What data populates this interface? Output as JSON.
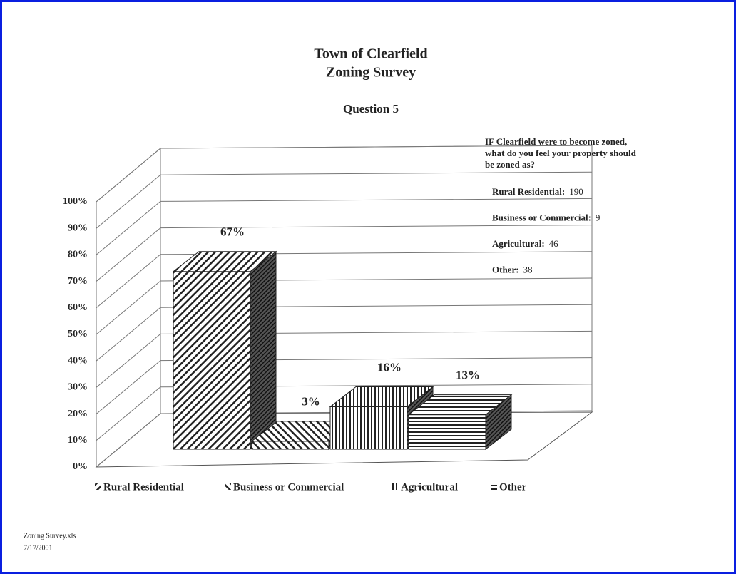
{
  "chart_data": {
    "type": "bar3d",
    "title": [
      "Town of Clearfield",
      "Zoning Survey"
    ],
    "subtitle": "Question 5",
    "categories": [
      "Rural Residential",
      "Business or Commercial",
      "Agricultural",
      "Other"
    ],
    "values": [
      67,
      3,
      16,
      13
    ],
    "value_labels": [
      "67%",
      "3%",
      "16%",
      "13%"
    ],
    "patterns": [
      "diag-back",
      "diag-fwd",
      "vertical",
      "horizontal"
    ],
    "ylim": [
      0,
      100
    ],
    "yticks": [
      {
        "value": 0,
        "label": "0%"
      },
      {
        "value": 10,
        "label": "10%"
      },
      {
        "value": 20,
        "label": "20%"
      },
      {
        "value": 30,
        "label": "30%"
      },
      {
        "value": 40,
        "label": "40%"
      },
      {
        "value": 50,
        "label": "50%"
      },
      {
        "value": 60,
        "label": "60%"
      },
      {
        "value": 70,
        "label": "70%"
      },
      {
        "value": 80,
        "label": "80%"
      },
      {
        "value": 90,
        "label": "90%"
      },
      {
        "value": 100,
        "label": "100%"
      }
    ],
    "grid": true,
    "annotation": [
      "IF Clearfield were to become zoned,",
      "what do you feel your property should",
      "be zoned as?"
    ],
    "counts": [
      {
        "label": "Rural Residential:",
        "value": 190
      },
      {
        "label": "Business or Commercial:",
        "value": 9
      },
      {
        "label": "Agricultural:",
        "value": 46
      },
      {
        "label": "Other:",
        "value": 38
      }
    ],
    "footer": [
      "Zoning Survey.xls",
      "7/17/2001"
    ]
  }
}
